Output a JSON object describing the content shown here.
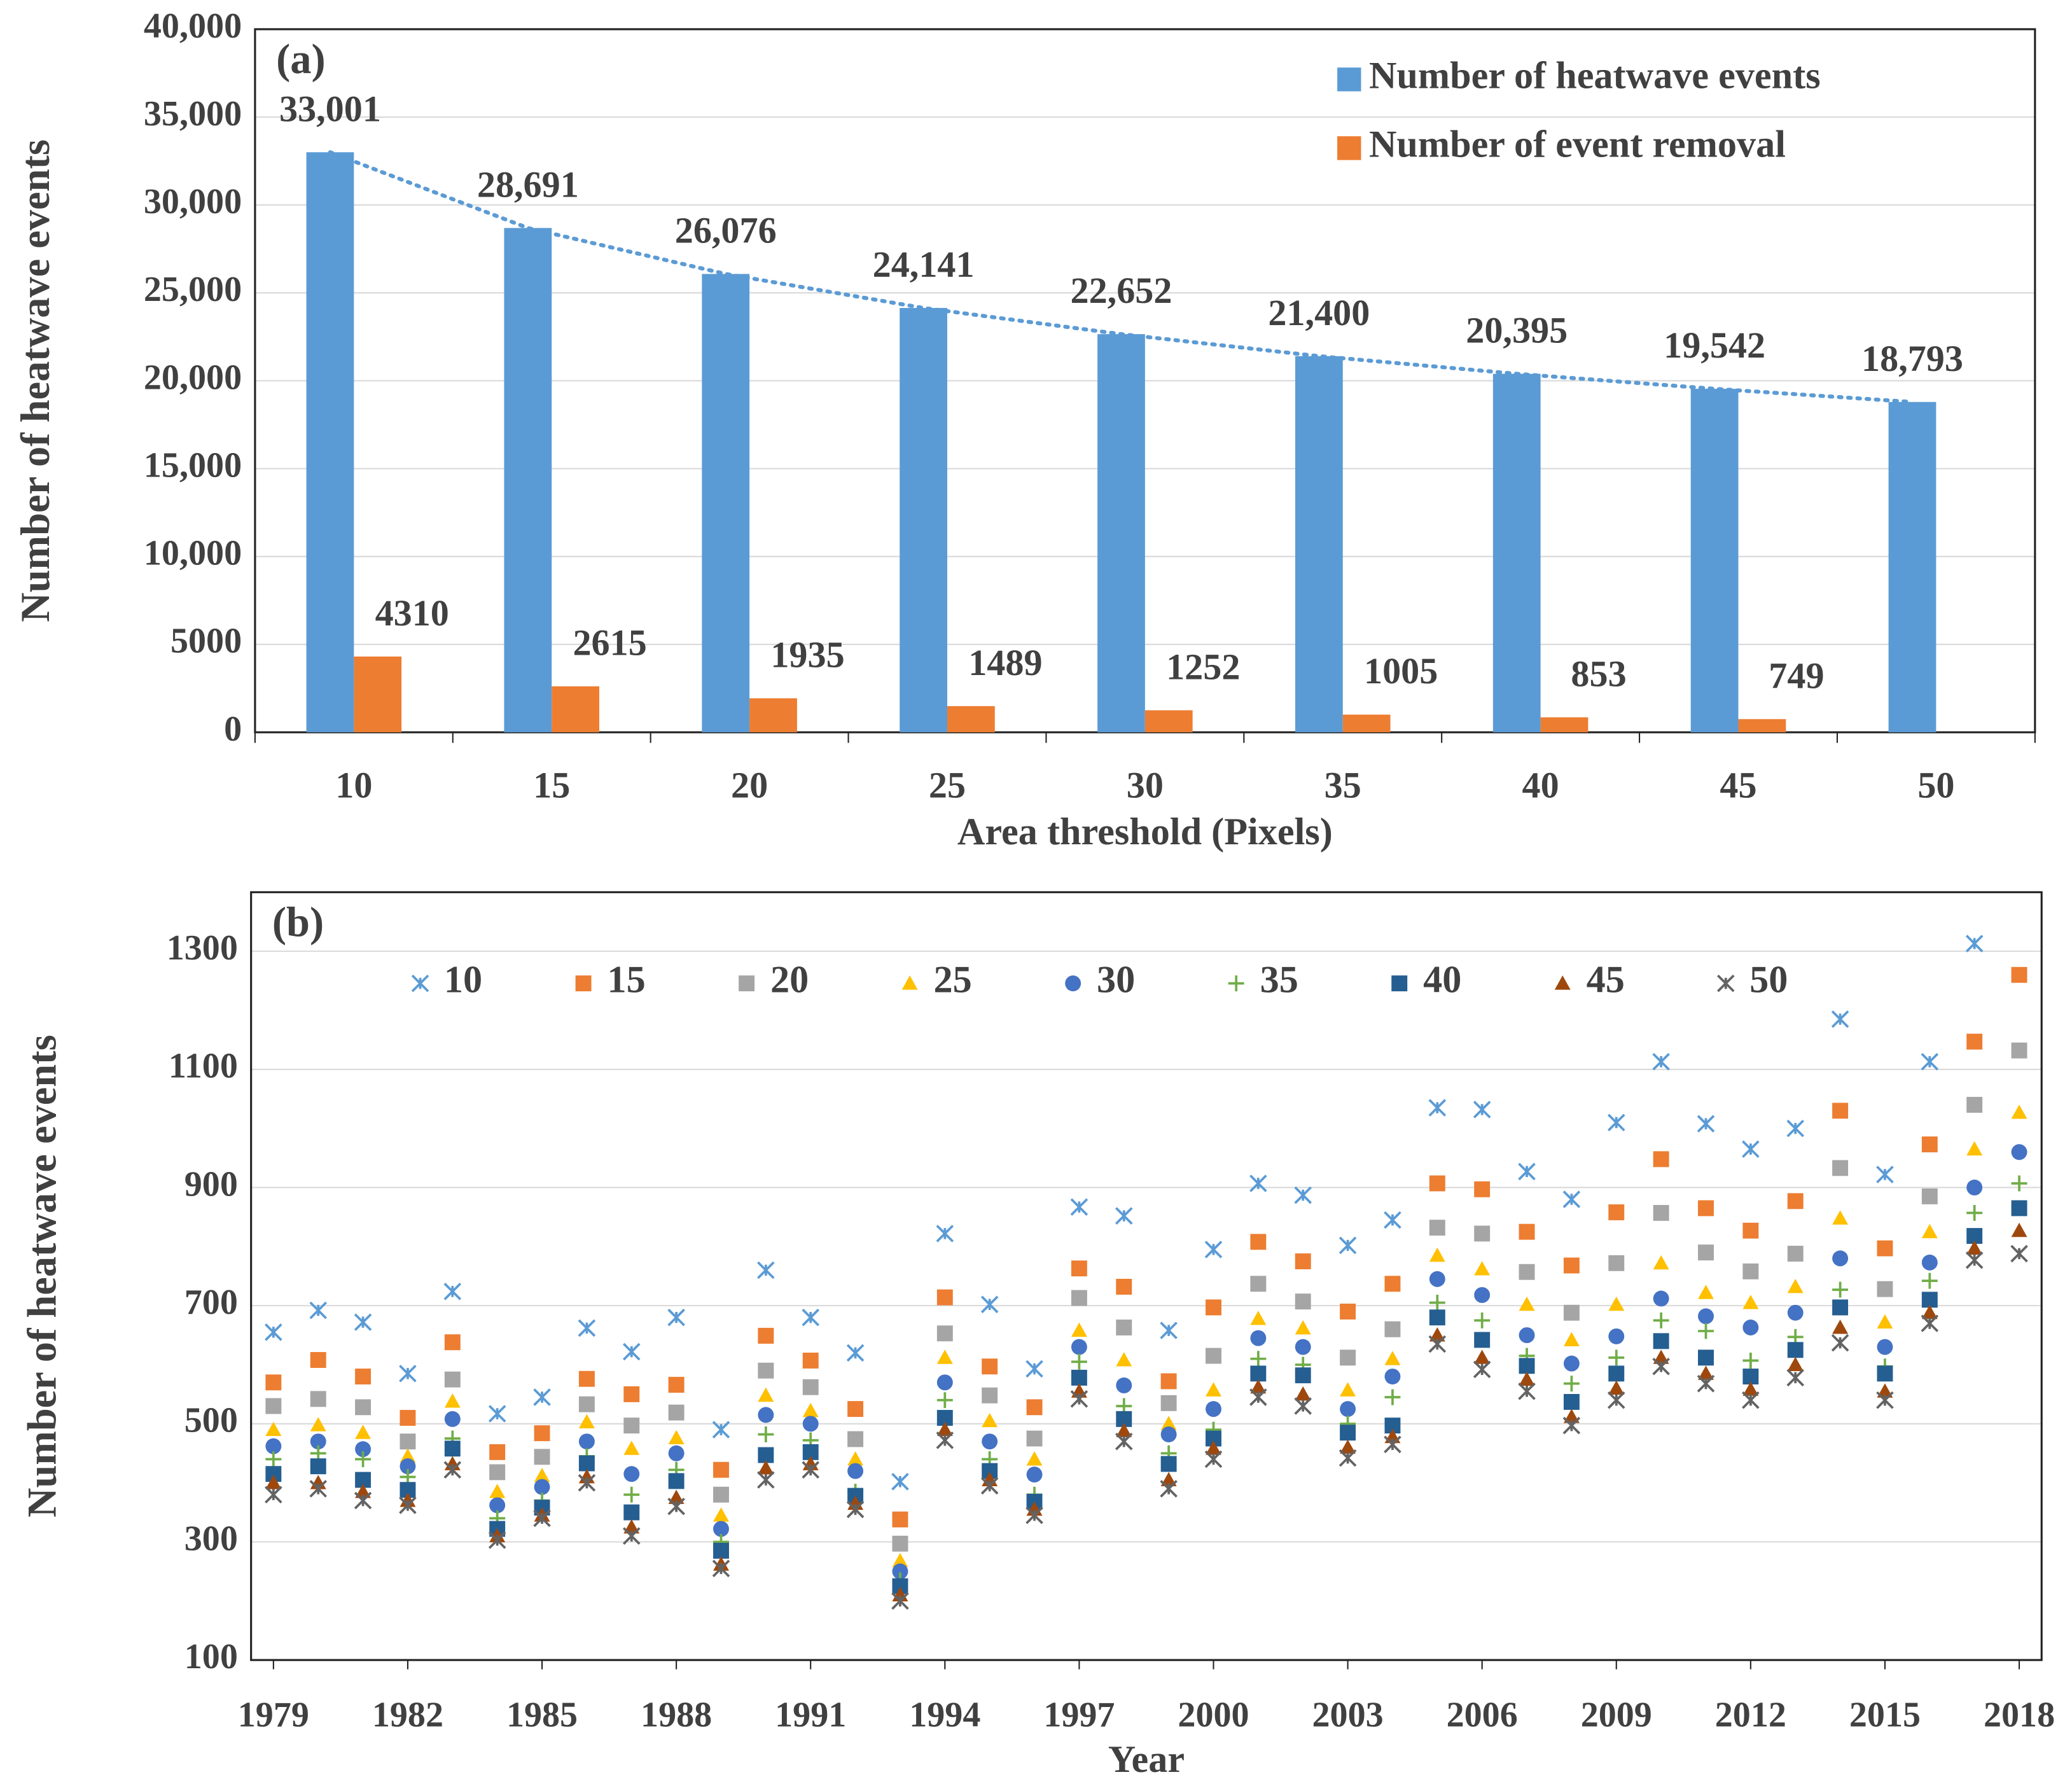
{
  "chart_data": [
    {
      "type": "bar",
      "annotation": "(a)",
      "y_label": "Number of heatwave events",
      "x_label": "Area threshold (Pixels)",
      "categories": [
        10,
        15,
        20,
        25,
        30,
        35,
        40,
        45,
        50
      ],
      "series": [
        {
          "name": "Number of heatwave events",
          "color": "#5b9bd5",
          "values": [
            33001,
            28691,
            26076,
            24141,
            22652,
            21400,
            20395,
            19542,
            18793
          ],
          "value_labels": [
            "33,001",
            "28,691",
            "26,076",
            "24,141",
            "22,652",
            "21,400",
            "20,395",
            "19,542",
            "18,793"
          ],
          "trendline": "dotted"
        },
        {
          "name": "Number of event removal",
          "color": "#ed7d31",
          "values": [
            4310,
            2615,
            1935,
            1489,
            1252,
            1005,
            853,
            749,
            null
          ]
        }
      ],
      "ylim": [
        0,
        40000
      ],
      "yticks": [
        0,
        5000,
        {
          "value": 10000,
          "label": "10,000"
        },
        {
          "value": 15000,
          "label": "15,000"
        },
        {
          "value": 20000,
          "label": "20,000"
        },
        {
          "value": 25000,
          "label": "25,000"
        },
        {
          "value": 30000,
          "label": "30,000"
        },
        {
          "value": 35000,
          "label": "35,000"
        },
        {
          "value": 40000,
          "label": "40,000"
        }
      ],
      "grid": true,
      "legend": "top-right"
    },
    {
      "type": "scatter",
      "annotation": "(b)",
      "y_label": "Number of heatwave events",
      "x_label": "Year",
      "x": [
        1979,
        1980,
        1981,
        1982,
        1983,
        1984,
        1985,
        1986,
        1987,
        1988,
        1989,
        1990,
        1991,
        1992,
        1993,
        1994,
        1995,
        1996,
        1997,
        1998,
        1999,
        2000,
        2001,
        2002,
        2003,
        2004,
        2005,
        2006,
        2007,
        2008,
        2009,
        2010,
        2011,
        2012,
        2013,
        2014,
        2015,
        2016,
        2017,
        2018
      ],
      "xlim": [
        1978.5,
        2018.5
      ],
      "xticks": [
        1979,
        1982,
        1985,
        1988,
        1991,
        1994,
        1997,
        2000,
        2003,
        2006,
        2009,
        2012,
        2015,
        2018
      ],
      "ylim": [
        100,
        1400
      ],
      "yticks": [
        100,
        300,
        500,
        700,
        900,
        1100,
        1300
      ],
      "grid": true,
      "legend": "top",
      "series": [
        {
          "name": "10",
          "color": "#5b9bd5",
          "marker": "x",
          "values": [
            655,
            692,
            672,
            585,
            724,
            517,
            545,
            662,
            622,
            680,
            490,
            760,
            680,
            620,
            402,
            822,
            702,
            593,
            867,
            852,
            658,
            795,
            907,
            887,
            802,
            845,
            1035,
            1032,
            927,
            880,
            1010,
            1113,
            1008,
            965,
            1000,
            1185,
            922,
            1113,
            1313,
            null
          ]
        },
        {
          "name": "15",
          "color": "#ed7d31",
          "marker": "square",
          "values": [
            570,
            608,
            580,
            510,
            638,
            452,
            484,
            576,
            550,
            566,
            422,
            649,
            607,
            525,
            338,
            714,
            597,
            528,
            763,
            732,
            572,
            697,
            808,
            775,
            690,
            737,
            907,
            897,
            825,
            768,
            858,
            948,
            865,
            827,
            877,
            1030,
            797,
            973,
            1147,
            1260
          ]
        },
        {
          "name": "20",
          "color": "#a5a5a5",
          "marker": "square",
          "values": [
            530,
            542,
            528,
            470,
            575,
            418,
            444,
            533,
            497,
            519,
            380,
            590,
            562,
            474,
            297,
            653,
            548,
            475,
            713,
            663,
            535,
            615,
            737,
            707,
            612,
            660,
            832,
            822,
            757,
            688,
            772,
            857,
            790,
            758,
            788,
            933,
            728,
            885,
            1040,
            1132
          ]
        },
        {
          "name": "25",
          "color": "#ffc000",
          "marker": "triangle",
          "values": [
            490,
            498,
            485,
            445,
            538,
            385,
            412,
            503,
            458,
            476,
            345,
            548,
            522,
            440,
            268,
            612,
            505,
            440,
            658,
            608,
            500,
            557,
            678,
            662,
            557,
            610,
            785,
            762,
            702,
            642,
            702,
            772,
            722,
            705,
            732,
            848,
            672,
            825,
            965,
            1027
          ]
        },
        {
          "name": "30",
          "color": "#4472c4",
          "marker": "circle",
          "values": [
            462,
            470,
            457,
            428,
            508,
            362,
            393,
            470,
            415,
            450,
            322,
            515,
            500,
            420,
            250,
            570,
            470,
            414,
            630,
            565,
            482,
            525,
            645,
            630,
            525,
            580,
            745,
            718,
            650,
            602,
            648,
            712,
            682,
            663,
            688,
            780,
            630,
            773,
            900,
            960
          ]
        },
        {
          "name": "35",
          "color": "#70ad47",
          "marker": "plus",
          "values": [
            440,
            450,
            440,
            410,
            475,
            340,
            370,
            445,
            380,
            422,
            300,
            482,
            472,
            385,
            235,
            540,
            440,
            380,
            605,
            530,
            450,
            490,
            610,
            600,
            500,
            545,
            705,
            675,
            615,
            568,
            612,
            675,
            657,
            607,
            647,
            727,
            597,
            742,
            857,
            907
          ]
        },
        {
          "name": "40",
          "color": "#255e91",
          "marker": "square",
          "values": [
            415,
            428,
            405,
            388,
            458,
            322,
            358,
            433,
            350,
            403,
            285,
            447,
            452,
            378,
            225,
            510,
            420,
            368,
            578,
            508,
            432,
            475,
            585,
            582,
            485,
            497,
            680,
            642,
            598,
            537,
            585,
            640,
            612,
            580,
            625,
            697,
            585,
            710,
            818,
            865
          ]
        },
        {
          "name": "45",
          "color": "#9e480e",
          "marker": "triangle",
          "values": [
            400,
            400,
            385,
            370,
            432,
            310,
            345,
            410,
            325,
            375,
            262,
            425,
            432,
            365,
            210,
            490,
            405,
            355,
            555,
            488,
            405,
            458,
            562,
            550,
            460,
            478,
            650,
            612,
            575,
            512,
            560,
            612,
            585,
            558,
            600,
            663,
            555,
            688,
            797,
            827
          ]
        },
        {
          "name": "50",
          "color": "#636363",
          "marker": "asterisk",
          "values": [
            380,
            390,
            370,
            362,
            422,
            303,
            340,
            400,
            310,
            360,
            255,
            405,
            422,
            355,
            200,
            472,
            395,
            345,
            542,
            470,
            390,
            440,
            545,
            530,
            442,
            465,
            635,
            592,
            555,
            497,
            540,
            597,
            568,
            540,
            578,
            637,
            540,
            670,
            777,
            788
          ]
        }
      ]
    }
  ]
}
